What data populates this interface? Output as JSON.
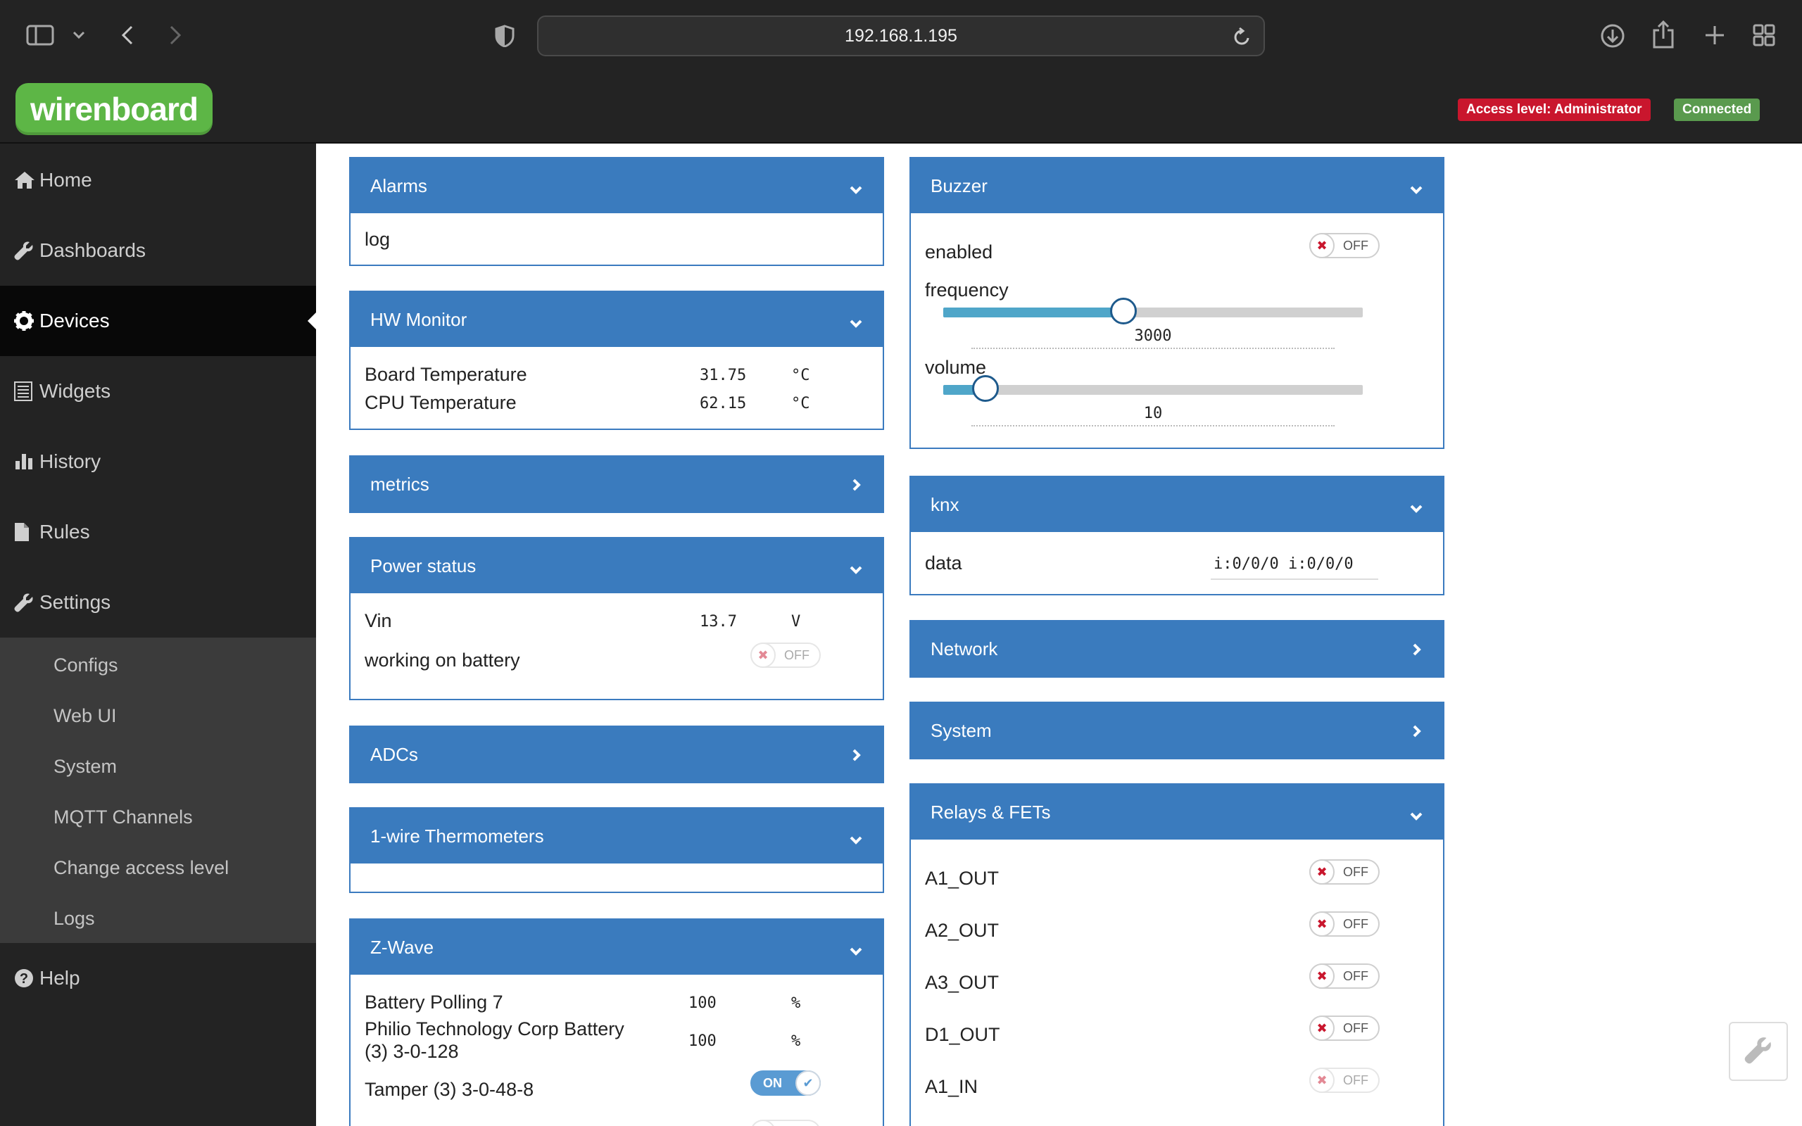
{
  "browser": {
    "url": "192.168.1.195",
    "icons": [
      "sidebar-icon",
      "chevron-down-icon",
      "back-icon",
      "forward-icon",
      "shield-icon",
      "reload-icon",
      "download-icon",
      "share-icon",
      "new-tab-icon",
      "tab-overview-icon"
    ]
  },
  "header": {
    "logo": "wirenboard",
    "access_badge": "Access level: Administrator",
    "connected_badge": "Connected"
  },
  "sidebar": {
    "items": [
      {
        "label": "Home",
        "icon": "home-icon"
      },
      {
        "label": "Dashboards",
        "icon": "wrench-icon"
      },
      {
        "label": "Devices",
        "icon": "gear-icon"
      },
      {
        "label": "Widgets",
        "icon": "list-icon"
      },
      {
        "label": "History",
        "icon": "bar-chart-icon"
      },
      {
        "label": "Rules",
        "icon": "file-icon"
      },
      {
        "label": "Settings",
        "icon": "wrench-icon"
      },
      {
        "label": "Help",
        "icon": "question-icon"
      }
    ],
    "settings_sub": [
      "Configs",
      "Web UI",
      "System",
      "MQTT Channels",
      "Change access level",
      "Logs"
    ]
  },
  "panels": {
    "alarms": {
      "title": "Alarms",
      "rows": [
        {
          "label": "log"
        }
      ]
    },
    "hw_monitor": {
      "title": "HW Monitor",
      "rows": [
        {
          "label": "Board Temperature",
          "value": "31.75",
          "unit": "°C"
        },
        {
          "label": "CPU Temperature",
          "value": "62.15",
          "unit": "°C"
        }
      ]
    },
    "metrics": {
      "title": "metrics"
    },
    "power_status": {
      "title": "Power status",
      "rows": [
        {
          "label": "Vin",
          "value": "13.7",
          "unit": "V"
        },
        {
          "label": "working on battery",
          "toggle": "OFF"
        }
      ]
    },
    "adcs": {
      "title": "ADCs"
    },
    "one_wire": {
      "title": "1-wire Thermometers"
    },
    "zwave": {
      "title": "Z-Wave",
      "rows": [
        {
          "label": "Battery Polling 7",
          "value": "100",
          "unit": "%"
        },
        {
          "label": "Philio Technology Corp Battery",
          "label2": "(3) 3-0-128",
          "value": "100",
          "unit": "%"
        },
        {
          "label": "Tamper (3) 3-0-48-8",
          "toggle": "ON"
        }
      ]
    },
    "buzzer": {
      "title": "Buzzer",
      "enabled": {
        "label": "enabled",
        "toggle": "OFF"
      },
      "frequency": {
        "label": "frequency",
        "value": "3000",
        "level": 0.43
      },
      "volume": {
        "label": "volume",
        "value": "10",
        "level": 0.1
      }
    },
    "knx": {
      "title": "knx",
      "rows": [
        {
          "label": "data",
          "value": "i:0/0/0 i:0/0/0"
        }
      ]
    },
    "network": {
      "title": "Network"
    },
    "system": {
      "title": "System"
    },
    "relays": {
      "title": "Relays & FETs",
      "rows": [
        {
          "label": "A1_OUT",
          "toggle": "OFF"
        },
        {
          "label": "A2_OUT",
          "toggle": "OFF"
        },
        {
          "label": "A3_OUT",
          "toggle": "OFF"
        },
        {
          "label": "D1_OUT",
          "toggle": "OFF"
        },
        {
          "label": "A1_IN",
          "toggle": "OFF"
        }
      ]
    }
  }
}
